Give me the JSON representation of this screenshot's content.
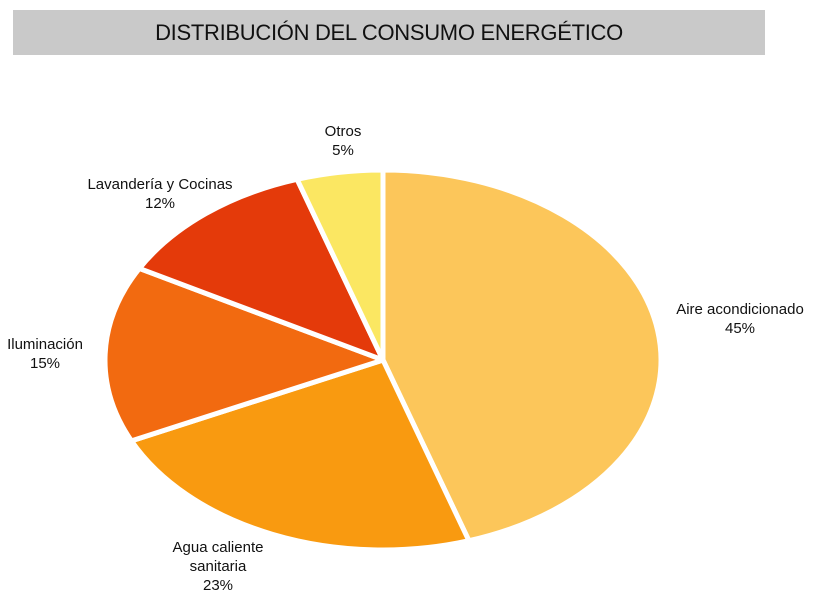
{
  "chart_data": {
    "type": "pie",
    "title": "DISTRIBUCIÓN DEL CONSUMO ENERGÉTICO",
    "categories": [
      "Aire acondicionado",
      "Agua caliente sanitaria",
      "Iluminación",
      "Lavandería y Cocinas",
      "Otros"
    ],
    "values": [
      45,
      23,
      15,
      12,
      5
    ],
    "value_labels": [
      "45%",
      "23%",
      "15%",
      "12%",
      "5%"
    ],
    "colors": [
      "#fcc65a",
      "#f99a10",
      "#f26a10",
      "#e43a0a",
      "#fbe762"
    ]
  }
}
